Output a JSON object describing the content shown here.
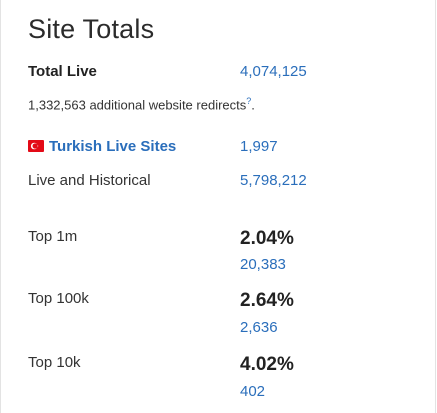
{
  "title": "Site Totals",
  "total_live": {
    "label": "Total Live",
    "value": "4,074,125"
  },
  "redirects": {
    "text": "1,332,563 additional website redirects",
    "footnote": "?",
    "trail": "."
  },
  "turkish": {
    "label": "Turkish Live Sites",
    "value": "1,997",
    "flag_icon": "turkey-flag-icon"
  },
  "historical": {
    "label": "Live and Historical",
    "value": "5,798,212"
  },
  "tiers": [
    {
      "label": "Top 1m",
      "percent": "2.04%",
      "count": "20,383"
    },
    {
      "label": "Top 100k",
      "percent": "2.64%",
      "count": "2,636"
    },
    {
      "label": "Top 10k",
      "percent": "4.02%",
      "count": "402"
    }
  ],
  "colors": {
    "link": "#2a6ebb",
    "flag": "#e30a17",
    "text": "#333333"
  }
}
